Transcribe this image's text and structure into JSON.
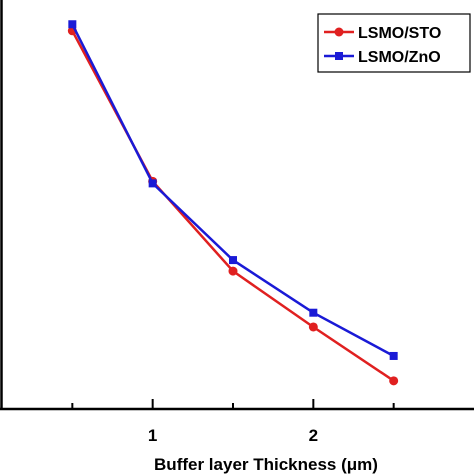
{
  "chart_data": {
    "type": "line",
    "xlabel": "Buffer layer Thickness (μm)",
    "ylabel": "",
    "xlim": [
      0.0,
      3.0
    ],
    "ylim": [
      0.0,
      1.0
    ],
    "x_ticks": [
      1,
      2
    ],
    "x_ticks_minor": [
      0.5,
      1.5,
      2.5
    ],
    "grid": false,
    "legend_position": "top-right",
    "series": [
      {
        "name": "LSMO/STO",
        "color": "#e02020",
        "marker": "circle",
        "x": [
          0.5,
          1.0,
          1.5,
          2.0,
          2.5
        ],
        "y": [
          0.927,
          0.558,
          0.338,
          0.201,
          0.069
        ]
      },
      {
        "name": "LSMO/ZnO",
        "color": "#1a1ad6",
        "marker": "square",
        "x": [
          0.5,
          1.0,
          1.5,
          2.0,
          2.5
        ],
        "y": [
          0.943,
          0.553,
          0.365,
          0.236,
          0.13
        ]
      }
    ]
  }
}
